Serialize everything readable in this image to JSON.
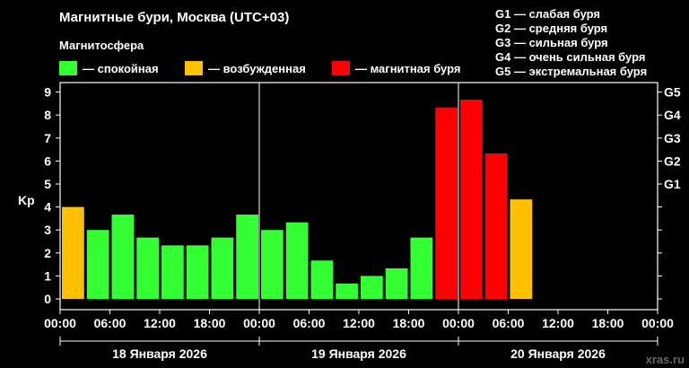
{
  "header": {
    "title": "Магнитные бури, Москва (UTC+03)",
    "subtitle": "Магнитосфера"
  },
  "legend": {
    "items": [
      {
        "label": "— спокойная",
        "color": "#33ff33"
      },
      {
        "label": "— возбужденная",
        "color": "#ffc000"
      },
      {
        "label": "— магнитная буря",
        "color": "#ff0000"
      }
    ]
  },
  "storm_scale": {
    "items": [
      "G1 — слабая буря",
      "G2 — средняя буря",
      "G3 — сильная буря",
      "G4 — очень сильная буря",
      "G5 — экстремальная буря"
    ]
  },
  "watermark": "xras.ru",
  "chart_data": {
    "type": "bar",
    "ylabel": "Kp",
    "ylim": [
      0,
      9.5
    ],
    "y_ticks": [
      "0",
      "1",
      "2",
      "3",
      "4",
      "5",
      "6",
      "7",
      "8",
      "9"
    ],
    "right_ticks": [
      {
        "value": 5,
        "label": "G1"
      },
      {
        "value": 6,
        "label": "G2"
      },
      {
        "value": 7,
        "label": "G3"
      },
      {
        "value": 8,
        "label": "G4"
      },
      {
        "value": 9,
        "label": "G5"
      }
    ],
    "x_ticks": [
      "00:00",
      "06:00",
      "12:00",
      "18:00",
      "00:00",
      "06:00",
      "12:00",
      "18:00",
      "00:00",
      "06:00",
      "12:00",
      "18:00",
      "00:00"
    ],
    "days": [
      "18 Января 2026",
      "19 Января 2026",
      "20 Января 2026"
    ],
    "interval_hours": 3,
    "values": [
      4.0,
      3.0,
      3.67,
      2.67,
      2.33,
      2.33,
      2.67,
      3.67,
      3.0,
      3.33,
      1.67,
      0.67,
      1.0,
      1.33,
      2.67,
      8.33,
      8.67,
      6.33,
      4.33
    ],
    "levels": [
      "excited",
      "quiet",
      "quiet",
      "quiet",
      "quiet",
      "quiet",
      "quiet",
      "quiet",
      "quiet",
      "quiet",
      "quiet",
      "quiet",
      "quiet",
      "quiet",
      "quiet",
      "storm",
      "storm",
      "storm",
      "excited"
    ],
    "colors": {
      "quiet": "#33ff33",
      "excited": "#ffc000",
      "storm": "#ff0000"
    }
  }
}
